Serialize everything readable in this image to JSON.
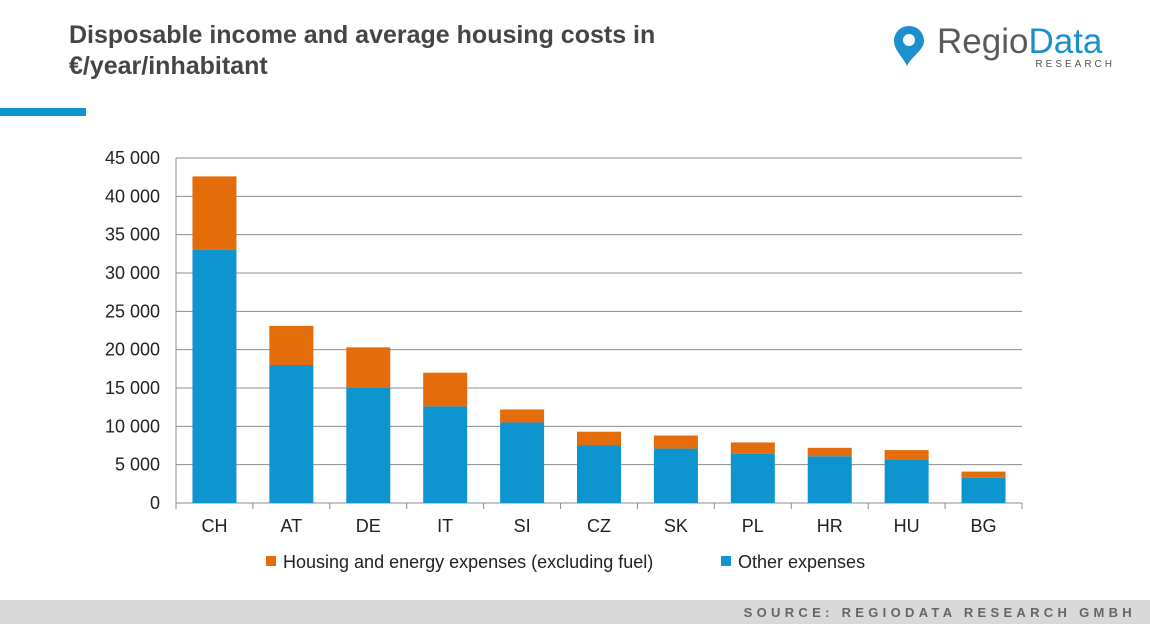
{
  "title": "Disposable income and average housing costs in €/year/inhabitant",
  "logo": {
    "word1": "Regio",
    "word2": "Data",
    "sub": "RESEARCH"
  },
  "source": "SOURCE: REGIODATA RESEARCH GMBH",
  "colors": {
    "housing": "#e46c0a",
    "other": "#0e95d0",
    "accent": "#0e95d0",
    "grid": "#8c8c8c"
  },
  "chart_data": {
    "type": "bar",
    "stacked": true,
    "categories": [
      "CH",
      "AT",
      "DE",
      "IT",
      "SI",
      "CZ",
      "SK",
      "PL",
      "HR",
      "HU",
      "BG"
    ],
    "series": [
      {
        "name": "Other expenses",
        "color": "#0e95d0",
        "values": [
          33100,
          18000,
          15100,
          12600,
          10500,
          7500,
          7100,
          6400,
          6100,
          5700,
          3300
        ]
      },
      {
        "name": "Housing and energy expenses (excluding fuel)",
        "color": "#e46c0a",
        "values": [
          9500,
          5100,
          5200,
          4400,
          1700,
          1800,
          1700,
          1500,
          1100,
          1200,
          800
        ]
      }
    ],
    "ylim": [
      0,
      45000
    ],
    "yticks": [
      "0",
      "5 000",
      "10 000",
      "15 000",
      "20 000",
      "25 000",
      "30 000",
      "35 000",
      "40 000",
      "45 000"
    ],
    "ytick_values": [
      0,
      5000,
      10000,
      15000,
      20000,
      25000,
      30000,
      35000,
      40000,
      45000
    ],
    "grid": true,
    "legend": {
      "position": "bottom",
      "items": [
        "Housing and energy expenses (excluding fuel)",
        "Other expenses"
      ]
    }
  }
}
